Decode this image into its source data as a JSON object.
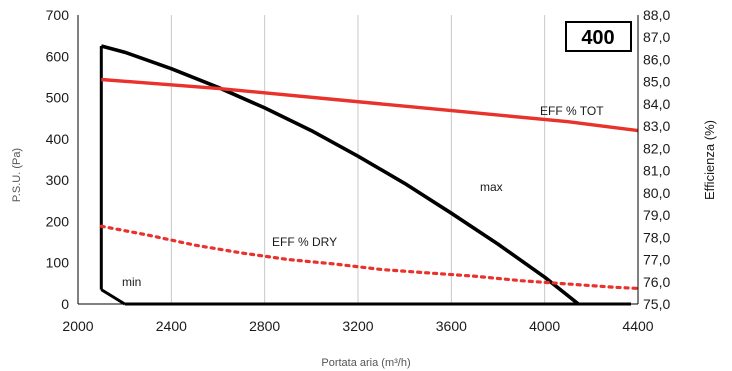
{
  "chart_data": {
    "type": "line",
    "xlabel": "Portata aria (m³/h)",
    "ylabel": "P.S.U. (Pa)",
    "y2label": "Efficienza (%)",
    "model_label": "400",
    "xlim": [
      2000,
      4400
    ],
    "ylim": [
      0,
      700
    ],
    "y2lim": [
      75.0,
      88.0
    ],
    "x_ticks": [
      "2000",
      "2400",
      "2800",
      "3200",
      "3600",
      "4000",
      "4400"
    ],
    "y_ticks": [
      "0",
      "100",
      "200",
      "300",
      "400",
      "500",
      "600",
      "700"
    ],
    "y2_ticks": [
      "75,0",
      "76,0",
      "77,0",
      "78,0",
      "79,0",
      "80,0",
      "81,0",
      "82,0",
      "83,0",
      "84,0",
      "85,0",
      "86,0",
      "87,0",
      "88,0"
    ],
    "grid": {
      "x": true,
      "y": false
    },
    "colors": {
      "max": "#000000",
      "min": "#000000",
      "eff_tot": "#e8322b",
      "eff_dry": "#e8322b",
      "grid": "#c8c8c8"
    },
    "series": [
      {
        "name": "max",
        "axis": "left",
        "style": "solid",
        "x": [
          2100,
          2200,
          2400,
          2600,
          2800,
          3000,
          3200,
          3400,
          3600,
          3800,
          4000,
          4200,
          4300
        ],
        "y": [
          625,
          610,
          570,
          525,
          475,
          420,
          358,
          292,
          220,
          145,
          65,
          -25,
          -70
        ]
      },
      {
        "name": "min",
        "axis": "left",
        "style": "solid",
        "x": [
          2100,
          2200
        ],
        "y": [
          35,
          0
        ]
      },
      {
        "name": "",
        "axis": "left",
        "style": "solid",
        "role": "vertical boundary",
        "x": [
          2100,
          2100
        ],
        "y": [
          35,
          625
        ]
      },
      {
        "name": "",
        "axis": "left",
        "style": "solid",
        "role": "zero pressure line",
        "x": [
          2200,
          4370
        ],
        "y": [
          0,
          0
        ]
      },
      {
        "name": "EFF % TOT",
        "axis": "right",
        "style": "solid",
        "x": [
          2100,
          2600,
          3100,
          3600,
          4100,
          4400
        ],
        "y": [
          85.1,
          84.7,
          84.2,
          83.7,
          83.2,
          82.8
        ]
      },
      {
        "name": "EFF % DRY",
        "axis": "right",
        "style": "dotted",
        "x": [
          2100,
          2300,
          2500,
          2700,
          2900,
          3100,
          3300,
          3500,
          3700,
          3900,
          4100,
          4300,
          4400
        ],
        "y": [
          78.5,
          78.1,
          77.65,
          77.3,
          77.0,
          76.8,
          76.55,
          76.4,
          76.25,
          76.05,
          75.9,
          75.75,
          75.7
        ]
      }
    ],
    "annotations": [
      "EFF % TOT",
      "EFF % DRY",
      "max",
      "min"
    ]
  }
}
